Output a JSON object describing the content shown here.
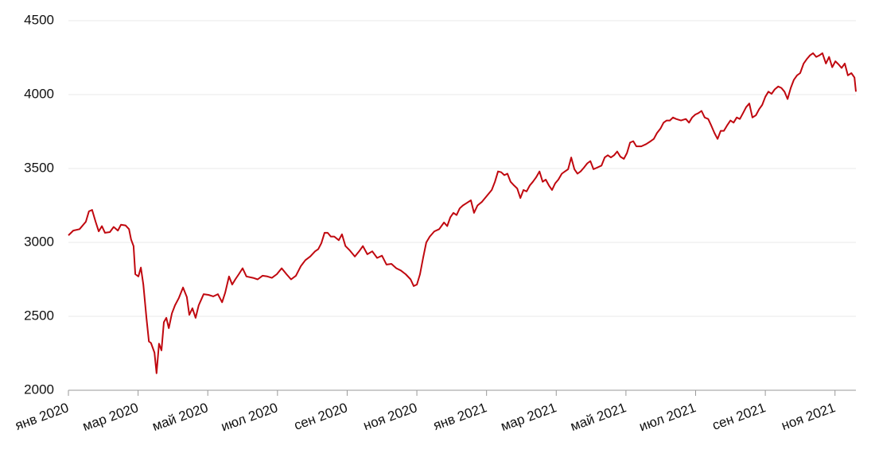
{
  "chart_data": {
    "type": "line",
    "color": "#c0080f",
    "grid": true,
    "x": [
      0,
      0.14,
      0.32,
      0.5,
      0.59,
      0.68,
      0.78,
      0.87,
      0.96,
      1.05,
      1.19,
      1.3,
      1.42,
      1.51,
      1.64,
      1.74,
      1.8,
      1.87,
      1.92,
      2.01,
      2.08,
      2.15,
      2.24,
      2.31,
      2.37,
      2.47,
      2.53,
      2.6,
      2.67,
      2.74,
      2.81,
      2.88,
      2.97,
      3.06,
      3.17,
      3.29,
      3.4,
      3.47,
      3.56,
      3.65,
      3.74,
      3.88,
      4.02,
      4.16,
      4.29,
      4.41,
      4.5,
      4.61,
      4.7,
      4.79,
      4.89,
      5,
      5.11,
      5.3,
      5.43,
      5.57,
      5.71,
      5.84,
      5.98,
      6.12,
      6.26,
      6.39,
      6.53,
      6.67,
      6.8,
      6.94,
      7.08,
      7.17,
      7.26,
      7.35,
      7.44,
      7.53,
      7.63,
      7.76,
      7.85,
      7.95,
      8.08,
      8.22,
      8.36,
      8.45,
      8.58,
      8.72,
      8.86,
      9,
      9.13,
      9.27,
      9.41,
      9.54,
      9.68,
      9.82,
      9.91,
      10,
      10.09,
      10.18,
      10.27,
      10.37,
      10.5,
      10.64,
      10.78,
      10.87,
      10.96,
      11.05,
      11.14,
      11.23,
      11.32,
      11.42,
      11.55,
      11.64,
      11.74,
      11.87,
      12.01,
      12.15,
      12.24,
      12.33,
      12.42,
      12.51,
      12.6,
      12.69,
      12.79,
      12.88,
      12.97,
      13.06,
      13.15,
      13.24,
      13.33,
      13.42,
      13.52,
      13.61,
      13.7,
      13.79,
      13.88,
      13.97,
      14.06,
      14.16,
      14.25,
      14.34,
      14.43,
      14.52,
      14.61,
      14.7,
      14.79,
      14.89,
      14.98,
      15.07,
      15.16,
      15.3,
      15.39,
      15.48,
      15.57,
      15.66,
      15.75,
      15.84,
      15.94,
      16.03,
      16.12,
      16.21,
      16.3,
      16.44,
      16.58,
      16.71,
      16.8,
      16.89,
      16.99,
      17.08,
      17.17,
      17.26,
      17.35,
      17.44,
      17.58,
      17.72,
      17.81,
      17.9,
      17.99,
      18.08,
      18.17,
      18.26,
      18.36,
      18.45,
      18.54,
      18.63,
      18.72,
      18.81,
      18.9,
      19,
      19.09,
      19.18,
      19.27,
      19.36,
      19.45,
      19.54,
      19.63,
      19.73,
      19.82,
      19.91,
      20,
      20.09,
      20.18,
      20.27,
      20.37,
      20.46,
      20.55,
      20.64,
      20.73,
      20.82,
      20.91,
      21,
      21.1,
      21.19,
      21.28,
      21.37,
      21.46,
      21.55,
      21.64,
      21.74,
      21.83,
      21.92,
      22.01,
      22.1,
      22.19,
      22.28,
      22.37,
      22.47,
      22.56,
      22.6
    ],
    "values": [
      3048,
      3080,
      3090,
      3140,
      3210,
      3220,
      3140,
      3075,
      3110,
      3065,
      3070,
      3105,
      3080,
      3120,
      3115,
      3090,
      3020,
      2975,
      2785,
      2770,
      2830,
      2715,
      2490,
      2330,
      2320,
      2255,
      2115,
      2315,
      2270,
      2460,
      2490,
      2420,
      2520,
      2575,
      2625,
      2695,
      2630,
      2510,
      2555,
      2490,
      2575,
      2650,
      2645,
      2635,
      2650,
      2595,
      2660,
      2770,
      2715,
      2750,
      2785,
      2825,
      2770,
      2760,
      2750,
      2775,
      2770,
      2760,
      2785,
      2825,
      2785,
      2750,
      2775,
      2840,
      2880,
      2905,
      2940,
      2955,
      2995,
      3065,
      3065,
      3040,
      3040,
      3015,
      3055,
      2975,
      2945,
      2905,
      2945,
      2975,
      2920,
      2940,
      2895,
      2910,
      2850,
      2855,
      2825,
      2810,
      2785,
      2750,
      2705,
      2715,
      2785,
      2895,
      3000,
      3040,
      3075,
      3090,
      3135,
      3110,
      3170,
      3200,
      3185,
      3230,
      3250,
      3265,
      3285,
      3200,
      3250,
      3275,
      3315,
      3355,
      3410,
      3480,
      3475,
      3455,
      3465,
      3410,
      3385,
      3365,
      3300,
      3355,
      3345,
      3385,
      3410,
      3440,
      3480,
      3410,
      3425,
      3385,
      3355,
      3400,
      3425,
      3465,
      3480,
      3495,
      3575,
      3495,
      3465,
      3480,
      3505,
      3535,
      3550,
      3495,
      3505,
      3520,
      3575,
      3590,
      3575,
      3590,
      3615,
      3580,
      3565,
      3605,
      3675,
      3685,
      3650,
      3650,
      3665,
      3685,
      3700,
      3740,
      3770,
      3810,
      3825,
      3825,
      3845,
      3835,
      3825,
      3835,
      3810,
      3845,
      3865,
      3875,
      3890,
      3845,
      3835,
      3790,
      3740,
      3700,
      3755,
      3755,
      3790,
      3825,
      3810,
      3845,
      3835,
      3875,
      3915,
      3940,
      3845,
      3860,
      3900,
      3930,
      3985,
      4020,
      4005,
      4035,
      4055,
      4045,
      4020,
      3970,
      4045,
      4100,
      4130,
      4145,
      4210,
      4240,
      4265,
      4280,
      4255,
      4265,
      4280,
      4210,
      4255,
      4185,
      4225,
      4205,
      4180,
      4210,
      4130,
      4145,
      4115,
      4020
    ],
    "xlim": [
      0,
      22.6
    ],
    "xticks": [
      {
        "value": 0,
        "label": "янв 2020"
      },
      {
        "value": 2,
        "label": "мар 2020"
      },
      {
        "value": 4,
        "label": "май 2020"
      },
      {
        "value": 6,
        "label": "июл 2020"
      },
      {
        "value": 8,
        "label": "сен 2020"
      },
      {
        "value": 10,
        "label": "ноя 2020"
      },
      {
        "value": 12,
        "label": "янв 2021"
      },
      {
        "value": 14,
        "label": "мар 2021"
      },
      {
        "value": 16,
        "label": "май 2021"
      },
      {
        "value": 18,
        "label": "июл 2021"
      },
      {
        "value": 20,
        "label": "сен 2021"
      },
      {
        "value": 22,
        "label": "ноя 2021"
      }
    ],
    "ylim": [
      2000,
      4500
    ],
    "yticks": [
      2000,
      2500,
      3000,
      3500,
      4000,
      4500
    ]
  }
}
